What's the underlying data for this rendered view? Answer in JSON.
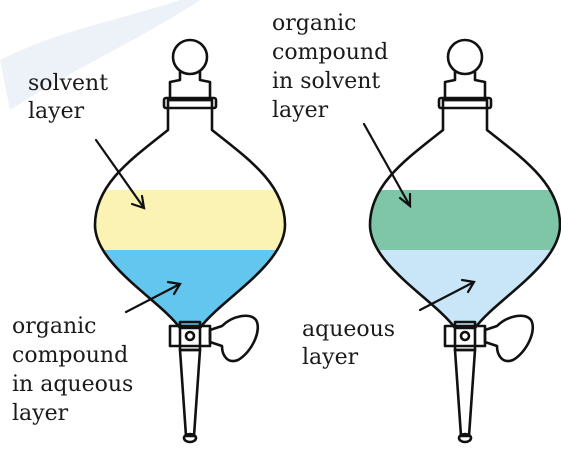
{
  "left_funnel": {
    "top_label": [
      "solvent",
      "layer"
    ],
    "bottom_label": [
      "organic",
      "compound",
      "in aqueous",
      "layer"
    ],
    "top_color": "#fbf3b3",
    "bottom_color": "#63c6ef"
  },
  "right_funnel": {
    "top_label": [
      "organic",
      "compound",
      "in solvent",
      "layer"
    ],
    "bottom_label": [
      "aqueous",
      "layer"
    ],
    "top_color": "#7fc6a8",
    "bottom_color": "#c8e6f7"
  },
  "watermark_color": "#e8eef6"
}
